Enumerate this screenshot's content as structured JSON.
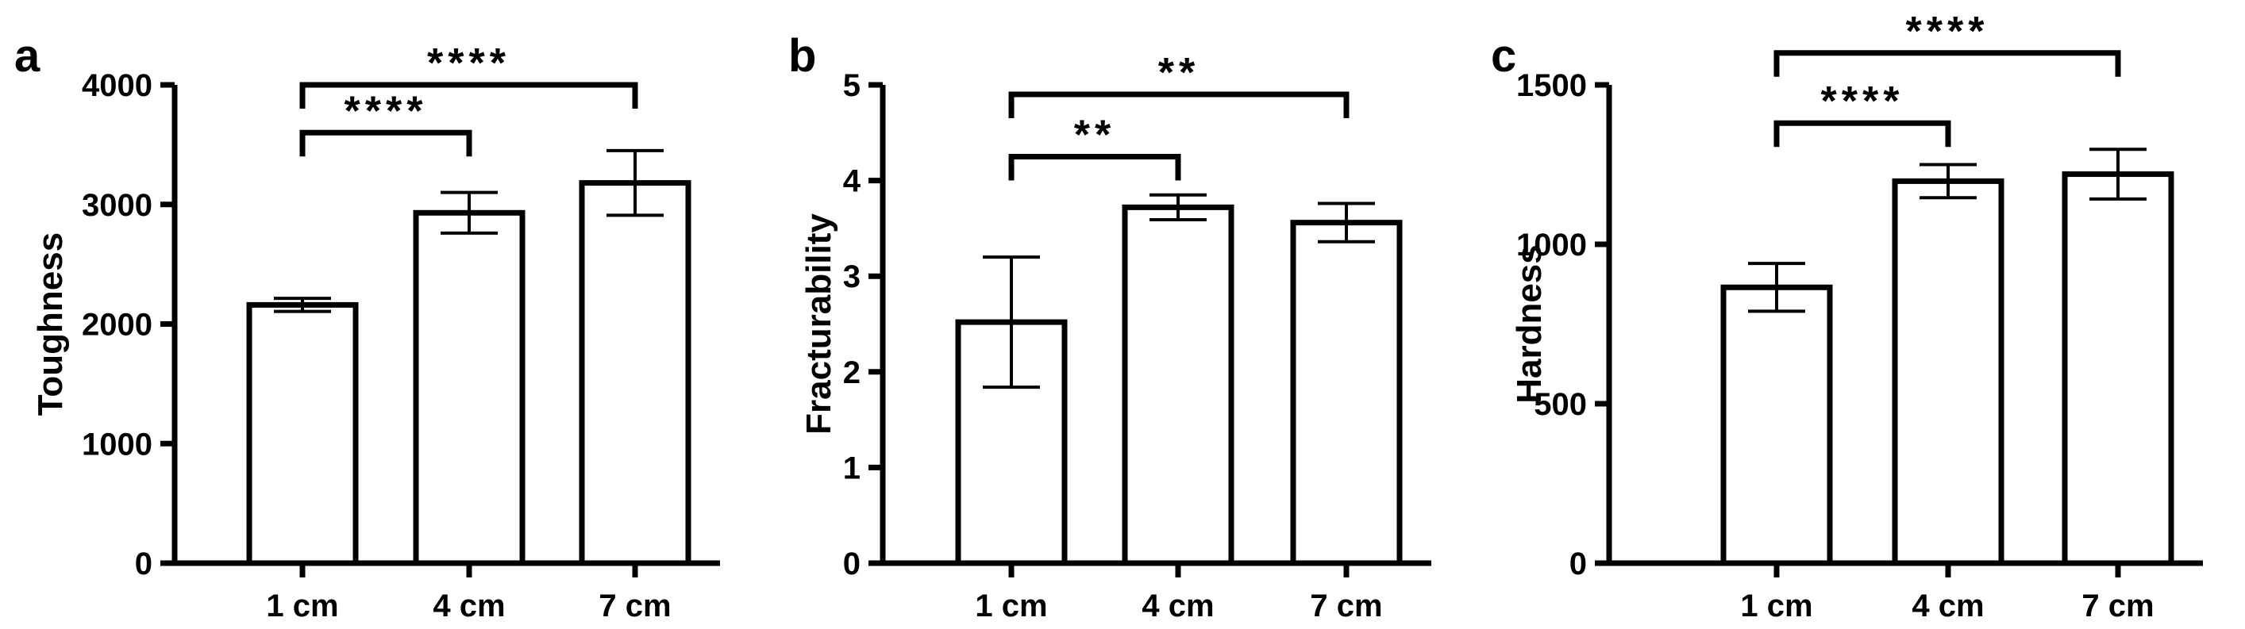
{
  "chart_data": [
    {
      "panel_label": "a",
      "type": "bar",
      "categories": [
        "1 cm",
        "4 cm",
        "7 cm"
      ],
      "values": [
        2160,
        2930,
        3180
      ],
      "error": [
        55,
        170,
        270
      ],
      "ylabel": "Toughness",
      "ylim": [
        0,
        4000
      ],
      "yticks": [
        0,
        1000,
        2000,
        3000,
        4000
      ],
      "ytick_labels": [
        "0",
        "1000",
        "2000",
        "3000",
        "4000"
      ],
      "significance": [
        {
          "from": 0,
          "to": 1,
          "label": "****",
          "level": 3600
        },
        {
          "from": 0,
          "to": 2,
          "label": "****",
          "level": 4000
        }
      ]
    },
    {
      "panel_label": "b",
      "type": "bar",
      "categories": [
        "1 cm",
        "4 cm",
        "7 cm"
      ],
      "values": [
        2.52,
        3.72,
        3.56
      ],
      "error": [
        0.68,
        0.13,
        0.2
      ],
      "ylabel": "Fracturability",
      "ylim": [
        0,
        5
      ],
      "yticks": [
        0,
        1,
        2,
        3,
        4,
        5
      ],
      "ytick_labels": [
        "0",
        "1",
        "2",
        "3",
        "4",
        "5"
      ],
      "significance": [
        {
          "from": 0,
          "to": 1,
          "label": "**",
          "level": 4.25
        },
        {
          "from": 0,
          "to": 2,
          "label": "**",
          "level": 4.9
        }
      ]
    },
    {
      "panel_label": "c",
      "type": "bar",
      "categories": [
        "1 cm",
        "4 cm",
        "7 cm"
      ],
      "values": [
        865,
        1198,
        1220
      ],
      "error": [
        75,
        52,
        78
      ],
      "ylabel": "Hardness",
      "ylim": [
        0,
        1500
      ],
      "yticks": [
        0,
        500,
        1000,
        1500
      ],
      "ytick_labels": [
        "0",
        "500",
        "1000",
        "1500"
      ],
      "significance": [
        {
          "from": 0,
          "to": 1,
          "label": "****",
          "level": 1380
        },
        {
          "from": 0,
          "to": 2,
          "label": "****",
          "level": 1600
        }
      ]
    }
  ]
}
